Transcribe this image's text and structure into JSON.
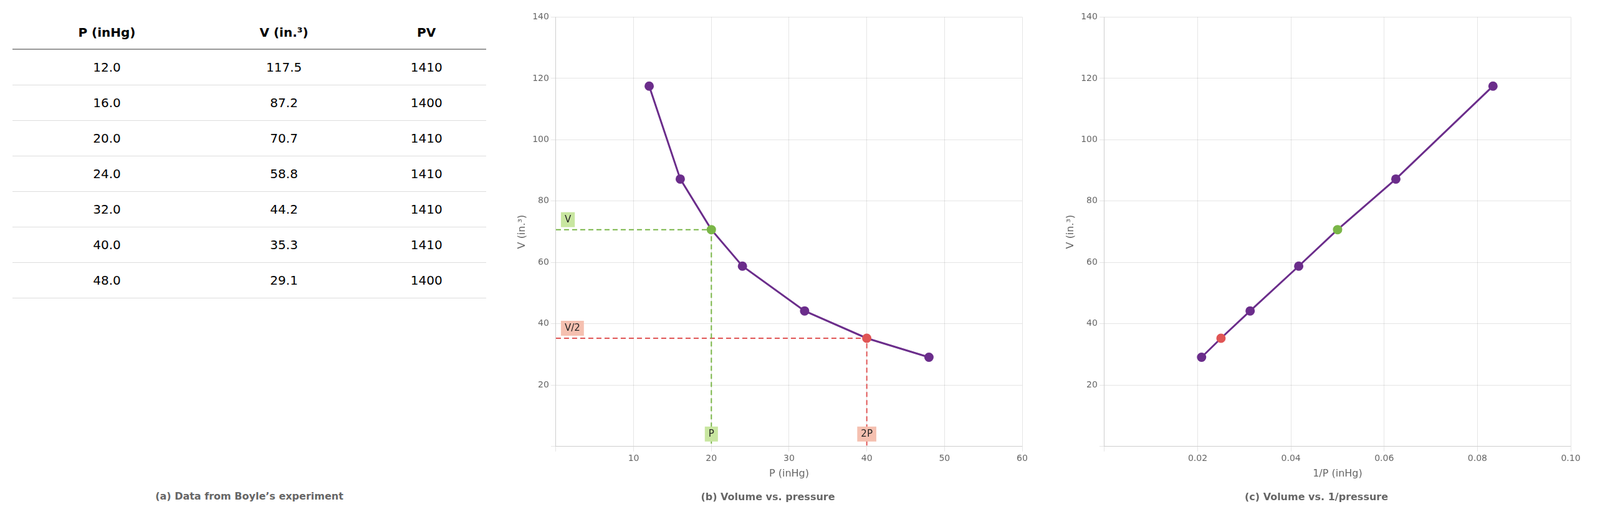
{
  "chart_data": [
    {
      "type": "table",
      "title": "(a) Data from Boyle’s experiment",
      "columns": [
        {
          "name": "P (inHg)",
          "values": [
            12.0,
            16.0,
            20.0,
            24.0,
            32.0,
            40.0,
            48.0
          ],
          "value_labels": [
            "12.0",
            "16.0",
            "20.0",
            "24.0",
            "32.0",
            "40.0",
            "48.0"
          ]
        },
        {
          "name": "V (in.³)",
          "values": [
            117.5,
            87.2,
            70.7,
            58.8,
            44.2,
            35.3,
            29.1
          ]
        },
        {
          "name": "PV",
          "values": [
            1410,
            1400,
            1410,
            1410,
            1410,
            1410,
            1400
          ]
        }
      ]
    },
    {
      "type": "line",
      "title": "(b) Volume vs. pressure",
      "x_label": "P (inHg)",
      "y_label": "V (in.³)",
      "x": [
        12.0,
        16.0,
        20.0,
        24.0,
        32.0,
        40.0,
        48.0
      ],
      "series": [
        {
          "color": "#6b2d8b",
          "marker": "circle",
          "line_style": "solid",
          "colors": [
            "#6b2d8b",
            "#6b2d8b",
            "#7ab648",
            "#6b2d8b",
            "#6b2d8b",
            "#e05555",
            "#6b2d8b"
          ],
          "values": [
            117.5,
            87.2,
            70.7,
            58.8,
            44.2,
            35.3,
            29.1
          ]
        }
      ],
      "guides": [
        {
          "x": 20.0,
          "y": 70.7,
          "color": "#7ab648",
          "line_style": "dashed",
          "x_text": "P",
          "y_text": "V",
          "box_color": "#c8e6a0"
        },
        {
          "x": 40.0,
          "y": 35.3,
          "color": "#e05555",
          "line_style": "dashed",
          "x_text": "2P",
          "y_text": "V/2",
          "box_color": "#f5c0b0"
        }
      ],
      "xlim": [
        0,
        60
      ],
      "xticks": [
        {
          "value": 0,
          "label": ""
        },
        10,
        20,
        30,
        40,
        50,
        60
      ],
      "ylim": [
        0,
        140
      ],
      "yticks": [
        {
          "value": 0,
          "label": ""
        },
        20,
        40,
        60,
        80,
        100,
        120,
        140
      ],
      "grid": true
    },
    {
      "type": "line",
      "title": "(c) Volume vs. 1/pressure",
      "x_label": "1/P (inHg)",
      "y_label": "V (in.³)",
      "x": [
        0.08333333333333333,
        0.0625,
        0.05,
        0.041666666666666664,
        0.03125,
        0.025,
        0.020833333333333332
      ],
      "series": [
        {
          "color": "#6b2d8b",
          "marker": "circle",
          "line_style": "solid",
          "colors": [
            "#6b2d8b",
            "#6b2d8b",
            "#7ab648",
            "#6b2d8b",
            "#6b2d8b",
            "#e05555",
            "#6b2d8b"
          ],
          "values": [
            117.5,
            87.2,
            70.7,
            58.8,
            44.2,
            35.3,
            29.1
          ]
        }
      ],
      "xlim": [
        0.0,
        0.1
      ],
      "xticks": [
        {
          "value": 0.0,
          "label": ""
        },
        0.02,
        0.04,
        0.06,
        0.08,
        {
          "value": 0.1,
          "label": "0.10"
        }
      ],
      "ylim": [
        0,
        140
      ],
      "yticks": [
        {
          "value": 0,
          "label": ""
        },
        20,
        40,
        60,
        80,
        100,
        120,
        140
      ],
      "grid": true
    }
  ]
}
